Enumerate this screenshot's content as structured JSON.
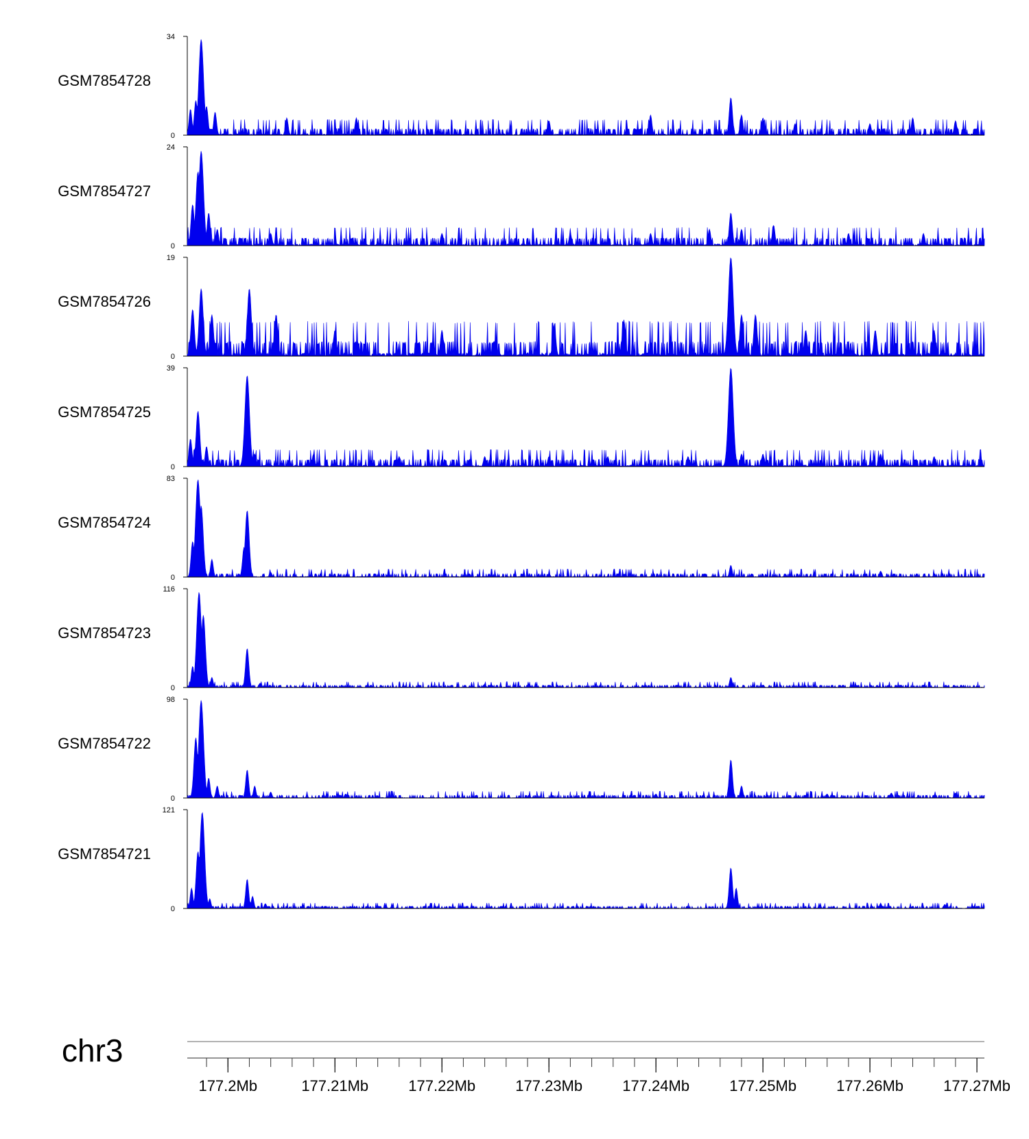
{
  "chart_data": {
    "type": "area",
    "chromosome": "chr3",
    "xlim": [
      177.1962,
      177.2707
    ],
    "x_unit": "Mb",
    "x_ticks": [
      177.2,
      177.21,
      177.22,
      177.23,
      177.24,
      177.25,
      177.26,
      177.27
    ],
    "x_tick_labels": [
      "177.2Mb",
      "177.21Mb",
      "177.22Mb",
      "177.23Mb",
      "177.24Mb",
      "177.25Mb",
      "177.26Mb",
      "177.27Mb"
    ],
    "fill_color": "#0000ee",
    "series": [
      {
        "name": "GSM7854728",
        "ymax": 34,
        "ymax_label": "34",
        "ymin_label": "0",
        "baseline": 1.2,
        "peaks": [
          [
            177.1975,
            33
          ],
          [
            177.197,
            12
          ],
          [
            177.1965,
            9
          ],
          [
            177.198,
            10
          ],
          [
            177.1988,
            8
          ],
          [
            177.2055,
            6
          ],
          [
            177.212,
            6
          ],
          [
            177.23,
            5
          ],
          [
            177.2395,
            7
          ],
          [
            177.247,
            13
          ],
          [
            177.248,
            7
          ],
          [
            177.25,
            6
          ],
          [
            177.253,
            4
          ],
          [
            177.26,
            4
          ],
          [
            177.264,
            6
          ],
          [
            177.268,
            5
          ]
        ]
      },
      {
        "name": "GSM7854727",
        "ymax": 24,
        "ymax_label": "24",
        "ymin_label": "0",
        "baseline": 1.0,
        "peaks": [
          [
            177.1975,
            23
          ],
          [
            177.1972,
            18
          ],
          [
            177.1967,
            10
          ],
          [
            177.1982,
            8
          ],
          [
            177.199,
            4
          ],
          [
            177.204,
            3
          ],
          [
            177.22,
            3
          ],
          [
            177.232,
            3
          ],
          [
            177.2395,
            3
          ],
          [
            177.245,
            4
          ],
          [
            177.247,
            8
          ],
          [
            177.248,
            4
          ],
          [
            177.251,
            5
          ],
          [
            177.258,
            3
          ],
          [
            177.265,
            3
          ]
        ]
      },
      {
        "name": "GSM7854726",
        "ymax": 19,
        "ymax_label": "19",
        "ymin_label": "0",
        "baseline": 1.5,
        "peaks": [
          [
            177.1975,
            13
          ],
          [
            177.1967,
            9
          ],
          [
            177.1985,
            8
          ],
          [
            177.202,
            13
          ],
          [
            177.2045,
            8
          ],
          [
            177.21,
            5
          ],
          [
            177.22,
            5
          ],
          [
            177.2305,
            6
          ],
          [
            177.237,
            7
          ],
          [
            177.247,
            19
          ],
          [
            177.248,
            8
          ],
          [
            177.2493,
            8
          ],
          [
            177.254,
            5
          ],
          [
            177.2605,
            5
          ],
          [
            177.266,
            5
          ]
        ]
      },
      {
        "name": "GSM7854725",
        "ymax": 39,
        "ymax_label": "39",
        "ymin_label": "0",
        "baseline": 1.5,
        "peaks": [
          [
            177.1972,
            22
          ],
          [
            177.1965,
            11
          ],
          [
            177.198,
            8
          ],
          [
            177.2018,
            36
          ],
          [
            177.2025,
            5
          ],
          [
            177.208,
            5
          ],
          [
            177.216,
            4
          ],
          [
            177.224,
            4
          ],
          [
            177.23,
            4
          ],
          [
            177.2355,
            4
          ],
          [
            177.243,
            4
          ],
          [
            177.247,
            39
          ],
          [
            177.248,
            5
          ],
          [
            177.25,
            5
          ],
          [
            177.261,
            5
          ],
          [
            177.266,
            4
          ]
        ]
      },
      {
        "name": "GSM7854724",
        "ymax": 83,
        "ymax_label": "83",
        "ymin_label": "0",
        "baseline": 1.5,
        "peaks": [
          [
            177.1972,
            82
          ],
          [
            177.1975,
            60
          ],
          [
            177.1967,
            30
          ],
          [
            177.1985,
            15
          ],
          [
            177.2018,
            56
          ],
          [
            177.2015,
            25
          ],
          [
            177.204,
            4
          ],
          [
            177.215,
            3
          ],
          [
            177.23,
            3
          ],
          [
            177.247,
            10
          ],
          [
            177.261,
            5
          ]
        ]
      },
      {
        "name": "GSM7854723",
        "ymax": 116,
        "ymax_label": "116",
        "ymin_label": "0",
        "baseline": 1.5,
        "peaks": [
          [
            177.1973,
            112
          ],
          [
            177.1977,
            85
          ],
          [
            177.1967,
            25
          ],
          [
            177.1985,
            12
          ],
          [
            177.2018,
            46
          ],
          [
            177.203,
            5
          ],
          [
            177.224,
            4
          ],
          [
            177.247,
            12
          ],
          [
            177.25,
            3
          ],
          [
            177.265,
            3
          ]
        ]
      },
      {
        "name": "GSM7854722",
        "ymax": 98,
        "ymax_label": "98",
        "ymin_label": "0",
        "baseline": 1.5,
        "peaks": [
          [
            177.1975,
            97
          ],
          [
            177.197,
            60
          ],
          [
            177.1982,
            20
          ],
          [
            177.199,
            12
          ],
          [
            177.2018,
            28
          ],
          [
            177.2025,
            12
          ],
          [
            177.204,
            6
          ],
          [
            177.211,
            4
          ],
          [
            177.24,
            4
          ],
          [
            177.247,
            38
          ],
          [
            177.248,
            12
          ],
          [
            177.256,
            4
          ],
          [
            177.262,
            5
          ],
          [
            177.268,
            5
          ]
        ]
      },
      {
        "name": "GSM7854721",
        "ymax": 121,
        "ymax_label": "121",
        "ymin_label": "0",
        "baseline": 1.5,
        "peaks": [
          [
            177.1976,
            118
          ],
          [
            177.1972,
            70
          ],
          [
            177.1966,
            25
          ],
          [
            177.1983,
            12
          ],
          [
            177.2018,
            36
          ],
          [
            177.2023,
            15
          ],
          [
            177.2035,
            6
          ],
          [
            177.247,
            50
          ],
          [
            177.2475,
            25
          ],
          [
            177.261,
            6
          ],
          [
            177.267,
            5
          ]
        ]
      }
    ]
  }
}
